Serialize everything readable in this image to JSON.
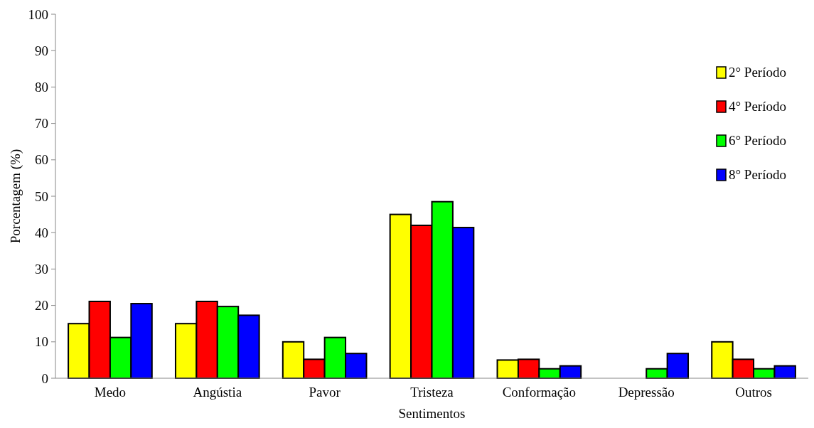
{
  "chart_data": {
    "type": "bar",
    "xlabel": "Sentimentos",
    "ylabel": "Porcentagem (%)",
    "categories": [
      "Medo",
      "Angústia",
      "Pavor",
      "Tristeza",
      "Conformação",
      "Depressão",
      "Outros"
    ],
    "series": [
      {
        "name": "2° Período",
        "color": "#ffff00",
        "values": [
          15,
          15,
          10,
          45,
          5,
          0,
          10
        ]
      },
      {
        "name": "4° Período",
        "color": "#ff0000",
        "values": [
          21.1,
          21.1,
          5.2,
          42,
          5.2,
          0,
          5.2
        ]
      },
      {
        "name": "6° Período",
        "color": "#00ff00",
        "values": [
          11.2,
          19.7,
          11.2,
          48.5,
          2.6,
          2.6,
          2.6
        ]
      },
      {
        "name": "8° Período",
        "color": "#0000ff",
        "values": [
          20.5,
          17.3,
          6.8,
          41.4,
          3.4,
          6.8,
          3.4
        ]
      }
    ],
    "ylim": [
      0,
      100
    ],
    "yticks": [
      0,
      10,
      20,
      30,
      40,
      50,
      60,
      70,
      80,
      90,
      100
    ],
    "grid": false,
    "legend": "top right"
  }
}
